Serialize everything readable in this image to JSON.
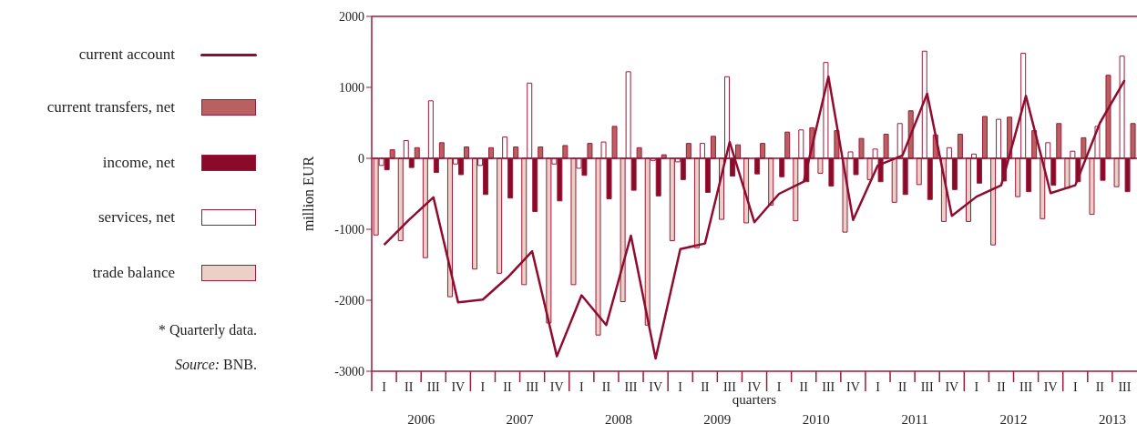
{
  "chart_data": {
    "type": "bar",
    "xlabel": "quarters",
    "ylabel": "million EUR",
    "categories": [
      "I",
      "II",
      "III",
      "IV",
      "I",
      "II",
      "III",
      "IV",
      "I",
      "II",
      "III",
      "IV",
      "I",
      "II",
      "III",
      "IV",
      "I",
      "II",
      "III",
      "IV",
      "I",
      "II",
      "III",
      "IV",
      "I",
      "II",
      "III",
      "IV",
      "I",
      "II",
      "III"
    ],
    "series": [
      {
        "name": "trade balance",
        "color": "#ecd0c8",
        "values": [
          -1080,
          -1160,
          -1400,
          -1950,
          -1560,
          -1620,
          -1780,
          -2320,
          -1780,
          -2490,
          -2020,
          -2350,
          -1160,
          -1260,
          -860,
          -910,
          -660,
          -880,
          -210,
          -1040,
          -300,
          -620,
          -370,
          -890,
          -890,
          -1220,
          -540,
          -850,
          -420,
          -790,
          -400
        ]
      },
      {
        "name": "services, net",
        "color": "#ffffff",
        "values": [
          -100,
          250,
          810,
          -80,
          -100,
          300,
          1060,
          -80,
          -140,
          230,
          1220,
          -30,
          -50,
          210,
          1150,
          null,
          null,
          400,
          1350,
          90,
          130,
          490,
          1510,
          150,
          60,
          550,
          1480,
          220,
          100,
          450,
          1440
        ]
      },
      {
        "name": "income, net",
        "color": "#8b0a2a",
        "values": [
          -160,
          -130,
          -200,
          -230,
          -510,
          -560,
          -750,
          -600,
          -240,
          -570,
          -450,
          -530,
          -300,
          -480,
          -250,
          -220,
          -260,
          -330,
          -390,
          -230,
          -330,
          -510,
          -580,
          -440,
          -350,
          -320,
          -470,
          -380,
          -330,
          -310,
          -470
        ]
      },
      {
        "name": "current transfers, net",
        "color": "#b96060",
        "values": [
          120,
          150,
          220,
          160,
          150,
          160,
          160,
          180,
          210,
          450,
          150,
          50,
          210,
          310,
          190,
          210,
          370,
          430,
          390,
          280,
          340,
          670,
          330,
          340,
          590,
          580,
          390,
          490,
          290,
          1170,
          490
        ]
      },
      {
        "name": "current account",
        "type": "line",
        "color": "#8f0c2e",
        "values": [
          -1220,
          -870,
          -550,
          -2030,
          -1990,
          -1680,
          -1310,
          -2790,
          -1930,
          -2350,
          -1090,
          -2820,
          -1280,
          -1200,
          230,
          -900,
          -500,
          -330,
          1150,
          -870,
          -100,
          40,
          910,
          -810,
          -540,
          -380,
          880,
          -490,
          -380,
          500,
          1100
        ]
      }
    ],
    "ylim": [
      -3000,
      2000
    ],
    "yticks": [
      -3000,
      -2000,
      -1000,
      0,
      1000,
      2000
    ],
    "ref_lines": [
      {
        "axis": "y",
        "value": 0,
        "color": "#8f0c2e"
      }
    ],
    "legend": "left",
    "marker": "none",
    "line_style": "solid",
    "annotations": [
      "2006",
      "2007",
      "2008",
      "2009",
      "2010",
      "2011",
      "2012",
      "2013",
      "* Quarterly data.",
      "Source: BNB."
    ]
  }
}
